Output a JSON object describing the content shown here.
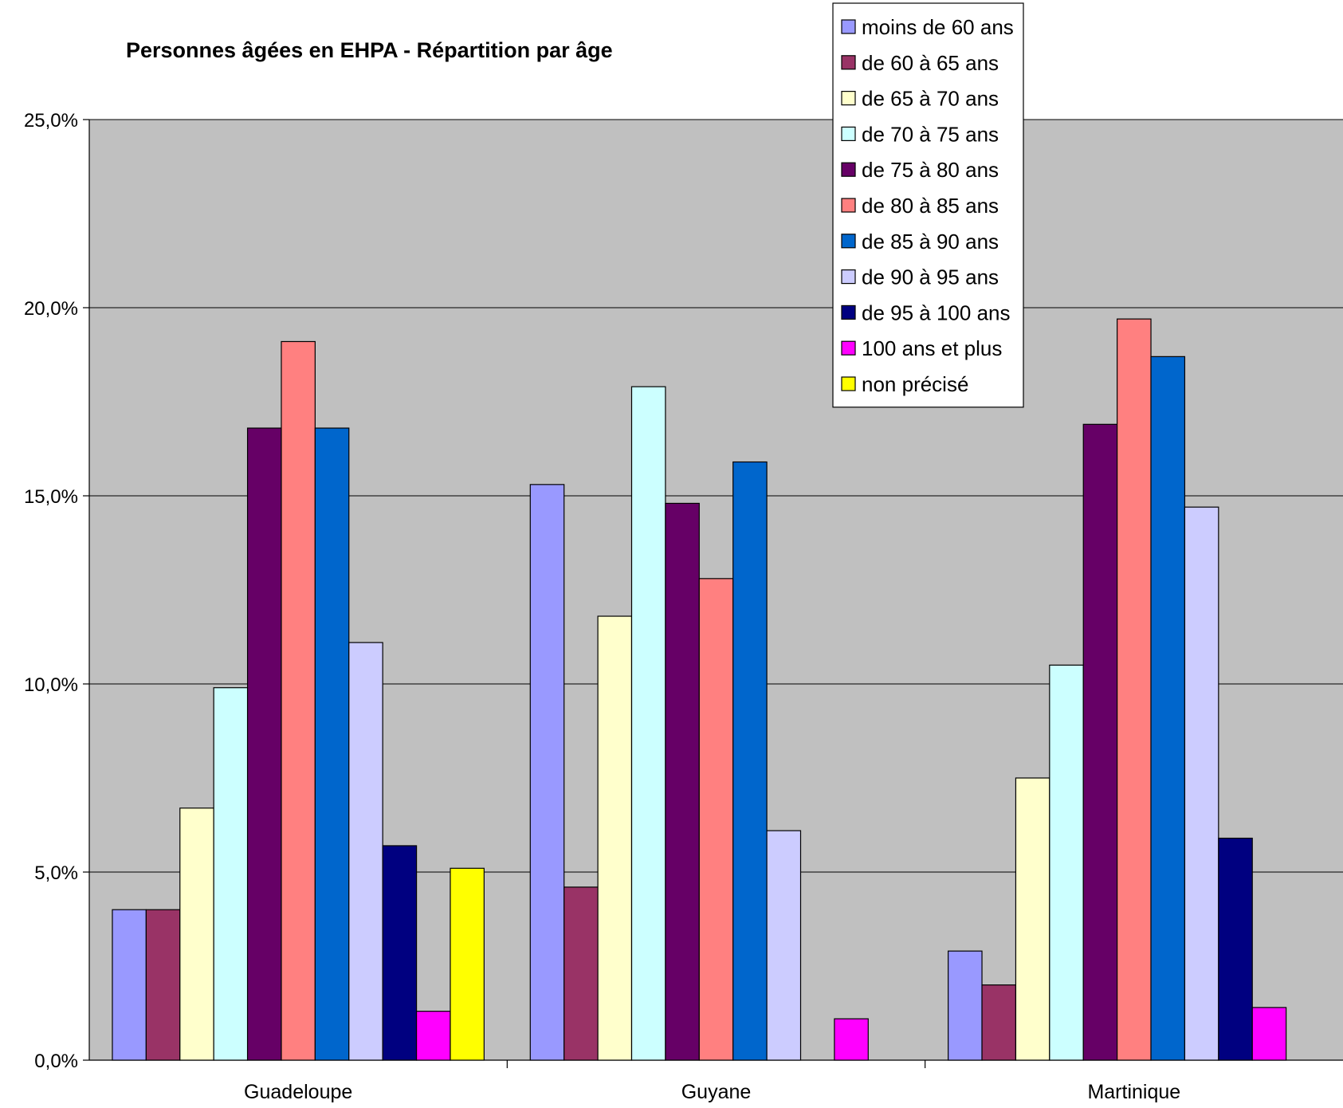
{
  "chart_data": {
    "type": "bar",
    "title": "Personnes âgées en EHPA - Répartition par âge",
    "xlabel": "",
    "ylabel": "",
    "ylim": [
      0,
      25
    ],
    "yticks": [
      "0,0%",
      "5,0%",
      "10,0%",
      "15,0%",
      "20,0%",
      "25,0%"
    ],
    "grid": true,
    "legend_position": "top-right",
    "categories": [
      "Guadeloupe",
      "Guyane",
      "Martinique"
    ],
    "series": [
      {
        "name": "moins de 60 ans",
        "color": "#9999ff",
        "values": [
          4.0,
          15.3,
          2.9
        ]
      },
      {
        "name": "de 60 à 65 ans",
        "color": "#993366",
        "values": [
          4.0,
          4.6,
          2.0
        ]
      },
      {
        "name": "de 65 à 70 ans",
        "color": "#ffffcc",
        "values": [
          6.7,
          11.8,
          7.5
        ]
      },
      {
        "name": "de 70 à 75 ans",
        "color": "#ccffff",
        "values": [
          9.9,
          17.9,
          10.5
        ]
      },
      {
        "name": "de 75 à 80 ans",
        "color": "#660066",
        "values": [
          16.8,
          14.8,
          16.9
        ]
      },
      {
        "name": "de 80 à 85 ans",
        "color": "#ff8080",
        "values": [
          19.1,
          12.8,
          19.7
        ]
      },
      {
        "name": "de 85 à 90 ans",
        "color": "#0066cc",
        "values": [
          16.8,
          15.9,
          18.7
        ]
      },
      {
        "name": "de 90 à 95 ans",
        "color": "#ccccff",
        "values": [
          11.1,
          6.1,
          14.7
        ]
      },
      {
        "name": "de 95 à 100 ans",
        "color": "#000080",
        "values": [
          5.7,
          0,
          5.9
        ]
      },
      {
        "name": "100 ans et plus",
        "color": "#ff00ff",
        "values": [
          1.3,
          1.1,
          1.4
        ]
      },
      {
        "name": "non précisé",
        "color": "#ffff00",
        "values": [
          5.1,
          0,
          0
        ]
      }
    ],
    "plot_background": "#c0c0c0"
  }
}
